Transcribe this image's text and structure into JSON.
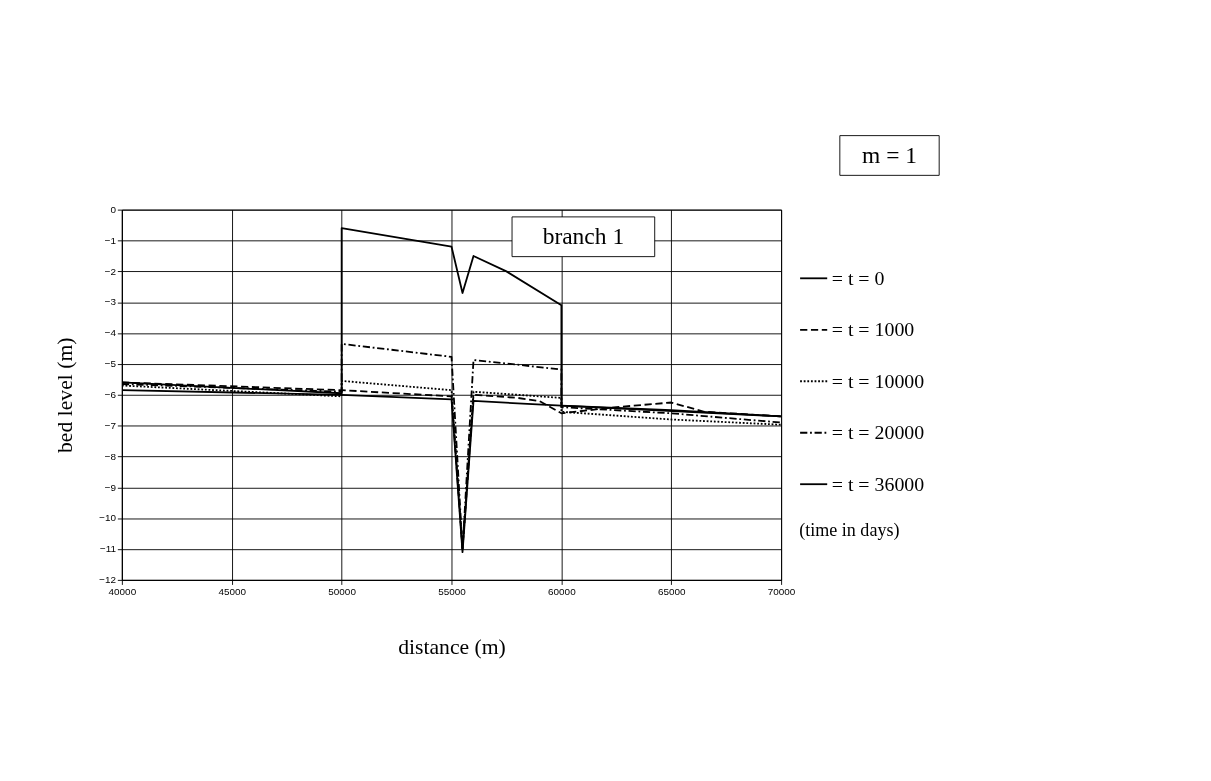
{
  "chart_data": {
    "type": "line",
    "xlabel": "distance (m)",
    "ylabel": "bed level (m)",
    "legend_title": "(time in days)",
    "xlim": [
      40000,
      70000
    ],
    "xticks": [
      40000,
      45000,
      50000,
      55000,
      60000,
      65000,
      70000
    ],
    "ylim": [
      -12,
      0
    ],
    "yticks": [
      -12,
      -11,
      -10,
      -9,
      -8,
      -7,
      -6,
      -5,
      -4,
      -3,
      -2,
      -1,
      0
    ],
    "grid": true,
    "legend": "right",
    "marker": "none",
    "annotations": [
      "m = 1",
      "branch 1"
    ],
    "series": [
      {
        "name": "= t = 0",
        "color": "#000000",
        "line_style": "solid",
        "x": [
          40000,
          50000,
          50000,
          55000,
          55500,
          56000,
          57500,
          60000,
          60000,
          70000
        ],
        "values": [
          -5.6,
          -5.95,
          -0.6,
          -1.2,
          -2.7,
          -1.5,
          -2.0,
          -3.1,
          -6.35,
          -6.7
        ]
      },
      {
        "name": "= t = 1000",
        "color": "#000000",
        "line_style": "dashed",
        "x": [
          40000,
          50000,
          55000,
          55500,
          56000,
          58000,
          59000,
          60000,
          62500,
          65000,
          66500,
          70000
        ],
        "values": [
          -5.6,
          -5.85,
          -6.05,
          -11.0,
          -6.0,
          -6.1,
          -6.2,
          -6.6,
          -6.4,
          -6.25,
          -6.55,
          -6.7
        ]
      },
      {
        "name": "= t = 10000",
        "color": "#000000",
        "line_style": "dotted",
        "x": [
          40000,
          50000,
          50000,
          55000,
          55500,
          56000,
          60000,
          60000,
          65000,
          70000
        ],
        "values": [
          -5.7,
          -6.05,
          -5.55,
          -5.85,
          -11.0,
          -5.9,
          -6.1,
          -6.55,
          -6.8,
          -6.97
        ]
      },
      {
        "name": "= t = 20000",
        "color": "#000000",
        "line_style": "dashdot",
        "x": [
          40000,
          50000,
          50000,
          55000,
          55500,
          56000,
          60000,
          60000,
          65000,
          70000
        ],
        "values": [
          -5.65,
          -5.9,
          -4.35,
          -4.77,
          -11.0,
          -4.87,
          -5.18,
          -6.4,
          -6.6,
          -6.9
        ]
      },
      {
        "name": "= t = 36000",
        "color": "#000000",
        "line_style": "solid",
        "x": [
          40000,
          50000,
          55000,
          55500,
          56000,
          60000,
          65000,
          70000
        ],
        "values": [
          -5.85,
          -6.0,
          -6.15,
          -11.1,
          -6.2,
          -6.35,
          -6.5,
          -6.7
        ]
      }
    ]
  }
}
